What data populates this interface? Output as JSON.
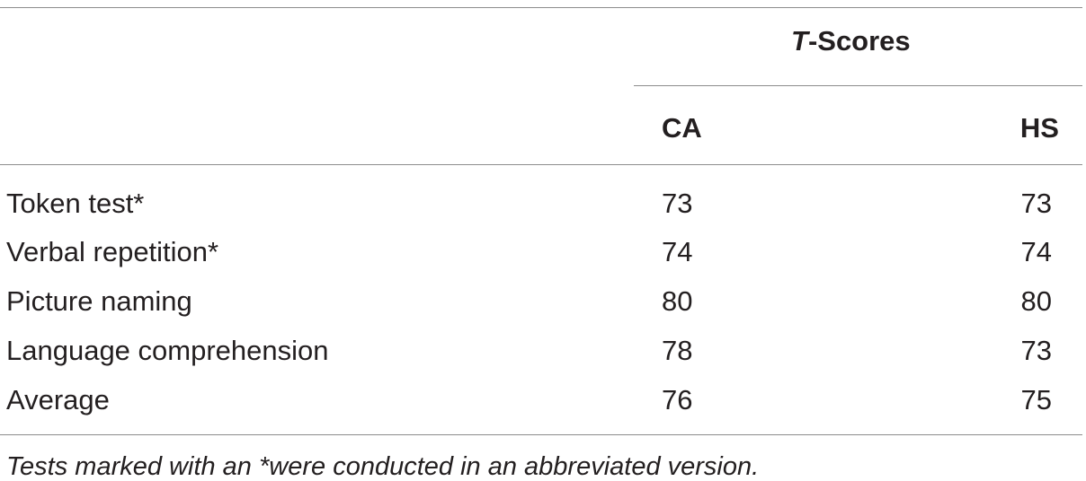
{
  "table": {
    "header": {
      "group_prefix": "T",
      "group_suffix": "-Scores",
      "columns": [
        "CA",
        "HS"
      ]
    },
    "rows": [
      {
        "label": "Token test*",
        "ca": "73",
        "hs": "73"
      },
      {
        "label": "Verbal repetition*",
        "ca": "74",
        "hs": "74"
      },
      {
        "label": "Picture naming",
        "ca": "80",
        "hs": "80"
      },
      {
        "label": "Language comprehension",
        "ca": "78",
        "hs": "73"
      },
      {
        "label": "Average",
        "ca": "76",
        "hs": "75"
      }
    ],
    "footnote": "Tests marked with an *were conducted in an abbreviated version."
  }
}
